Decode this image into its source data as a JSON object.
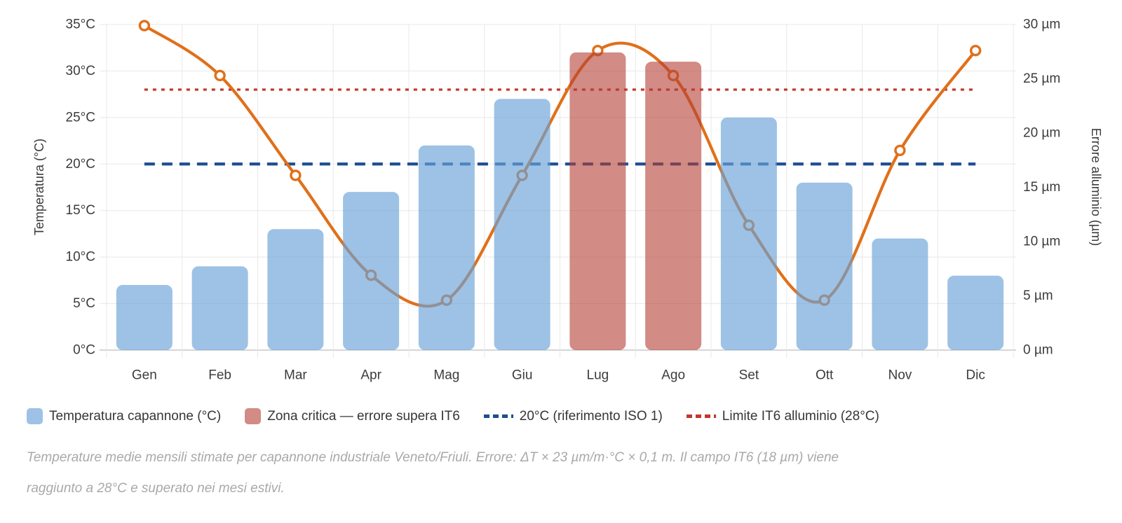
{
  "chart_data": {
    "type": "combo-bar-line",
    "categories": [
      "Gen",
      "Feb",
      "Mar",
      "Apr",
      "Mag",
      "Giu",
      "Lug",
      "Ago",
      "Set",
      "Ott",
      "Nov",
      "Dic"
    ],
    "series": [
      {
        "name": "Temperatura capannone (°C)",
        "type": "bar",
        "axis": "left",
        "values": [
          7,
          9,
          13,
          17,
          22,
          27,
          32,
          31,
          25,
          18,
          12,
          8
        ],
        "critical": [
          false,
          false,
          false,
          false,
          false,
          false,
          true,
          true,
          false,
          false,
          false,
          false
        ]
      },
      {
        "name": "Errore alluminio (µm)",
        "type": "line",
        "axis": "right",
        "values": [
          29.9,
          25.3,
          16.1,
          6.9,
          4.6,
          16.1,
          27.6,
          25.3,
          11.5,
          4.6,
          18.4,
          27.6
        ]
      }
    ],
    "reference_lines": [
      {
        "label": "20°C (riferimento ISO 1)",
        "axis": "left",
        "value": 20,
        "style": "dashed",
        "color_key": "ref_blue"
      },
      {
        "label": "Limite IT6 alluminio (28°C)",
        "axis": "left",
        "value": 28,
        "style": "dotted",
        "color_key": "ref_red"
      }
    ],
    "left_axis": {
      "title": "Temperatura (°C)",
      "min": 0,
      "max": 35,
      "step": 5,
      "ticks": [
        "0°C",
        "5°C",
        "10°C",
        "15°C",
        "20°C",
        "25°C",
        "30°C",
        "35°C"
      ]
    },
    "right_axis": {
      "title": "Errore alluminio (µm)",
      "min": 0,
      "max": 30,
      "step": 5,
      "ticks": [
        "0 µm",
        "5 µm",
        "10 µm",
        "15 µm",
        "20 µm",
        "25 µm",
        "30 µm"
      ]
    },
    "legend_items": [
      {
        "label": "Temperatura capannone (°C)",
        "swatch": "sq:bar_blue"
      },
      {
        "label": "Zona critica — errore supera IT6",
        "swatch": "sq:bar_red"
      },
      {
        "label": "20°C (riferimento ISO 1)",
        "swatch": "dash:ref_blue"
      },
      {
        "label": "Limite IT6 alluminio (28°C)",
        "swatch": "dash:ref_red"
      }
    ],
    "colors": {
      "line_orange": "#E0701A",
      "marker_fill": "#FCFCFC",
      "bar_blue": "rgba(104,161,215,0.65)",
      "bar_red": "rgba(180,62,52,0.6)",
      "ref_blue": "#1E4D91",
      "ref_red": "#C2382B",
      "grid": "#E8E8E8",
      "axis_line": "#C9C9C9",
      "tick_text": "#3C3C3C"
    },
    "grid": true,
    "legend_position": "bottom-left"
  },
  "caption": {
    "line1": "Temperature medie mensili stimate per capannone industriale Veneto/Friuli. Errore: ΔT × 23 µm/m·°C × 0,1 m. Il campo IT6 (18 µm) viene",
    "line2": "raggiunto a 28°C e superato nei mesi estivi."
  }
}
